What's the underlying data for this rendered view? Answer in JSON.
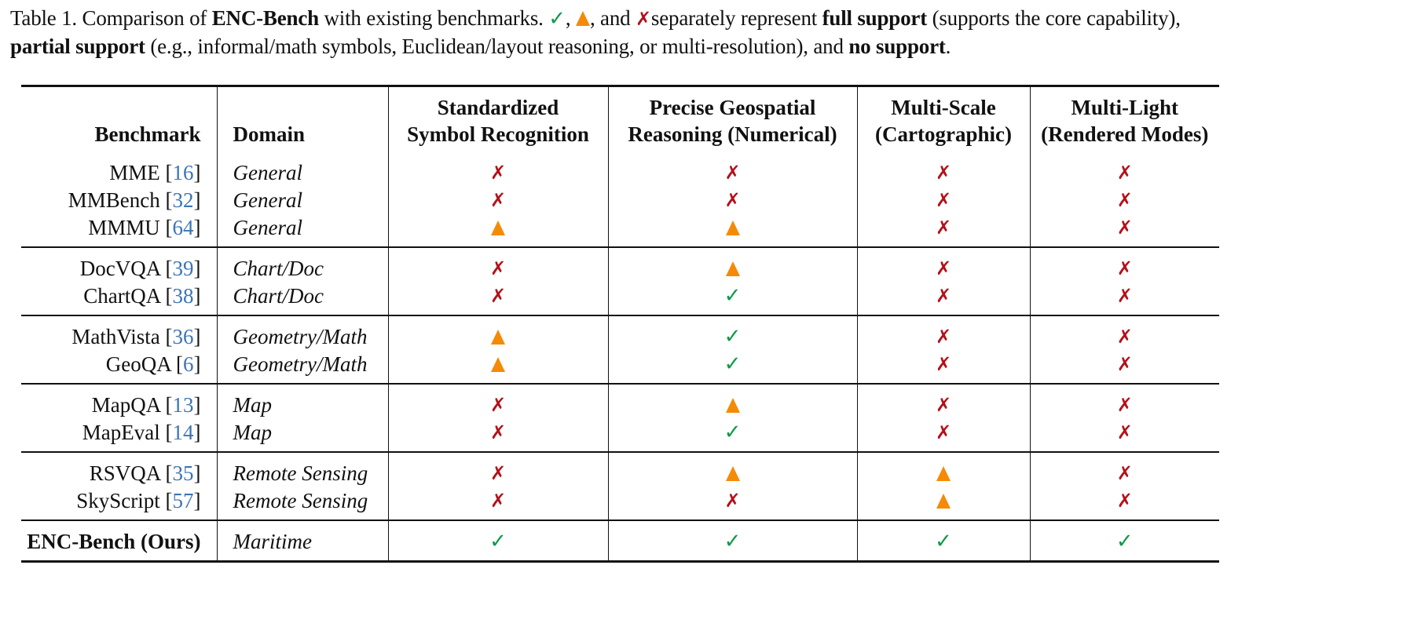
{
  "caption": {
    "prefix": "Table 1. Comparison of ",
    "bold_name": "ENC-Bench",
    "mid1": " with existing benchmarks. ",
    "sep1": ", ",
    "sep2": ", and ",
    "mid2": "separately represent ",
    "full_support_label": "full support",
    "full_support_desc": " (supports the core capability),",
    "partial_support_label": "partial support",
    "partial_support_desc": " (e.g., informal/math symbols, Euclidean/layout reasoning, or multi-resolution), and ",
    "no_support_label": "no support",
    "end": "."
  },
  "legend": {
    "full": {
      "symbol": "✓",
      "color": "#0e9a47",
      "icon": "check-icon"
    },
    "partial": {
      "symbol": "▲",
      "color": "#f58a07",
      "icon": "triangle-icon"
    },
    "none": {
      "symbol": "✗",
      "color": "#b3111a",
      "icon": "cross-icon"
    }
  },
  "table": {
    "headers": {
      "benchmark": "Benchmark",
      "domain": "Domain",
      "c1_line1": "Standardized",
      "c1_line2": "Symbol Recognition",
      "c2_line1": "Precise Geospatial",
      "c2_line2": "Reasoning (Numerical)",
      "c3_line1": "Multi-Scale",
      "c3_line2": "(Cartographic)",
      "c4_line1": "Multi-Light",
      "c4_line2": "(Rendered Modes)"
    },
    "groups": [
      {
        "rows": [
          {
            "name": "MME",
            "ref": "16",
            "domain": "General",
            "values": [
              "none",
              "none",
              "none",
              "none"
            ]
          },
          {
            "name": "MMBench",
            "ref": "32",
            "domain": "General",
            "values": [
              "none",
              "none",
              "none",
              "none"
            ]
          },
          {
            "name": "MMMU",
            "ref": "64",
            "domain": "General",
            "values": [
              "partial",
              "partial",
              "none",
              "none"
            ]
          }
        ]
      },
      {
        "rows": [
          {
            "name": "DocVQA",
            "ref": "39",
            "domain": "Chart/Doc",
            "values": [
              "none",
              "partial",
              "none",
              "none"
            ]
          },
          {
            "name": "ChartQA",
            "ref": "38",
            "domain": "Chart/Doc",
            "values": [
              "none",
              "full",
              "none",
              "none"
            ]
          }
        ]
      },
      {
        "rows": [
          {
            "name": "MathVista",
            "ref": "36",
            "domain": "Geometry/Math",
            "values": [
              "partial",
              "full",
              "none",
              "none"
            ]
          },
          {
            "name": "GeoQA",
            "ref": "6",
            "domain": "Geometry/Math",
            "values": [
              "partial",
              "full",
              "none",
              "none"
            ]
          }
        ]
      },
      {
        "rows": [
          {
            "name": "MapQA",
            "ref": "13",
            "domain": "Map",
            "values": [
              "none",
              "partial",
              "none",
              "none"
            ]
          },
          {
            "name": "MapEval",
            "ref": "14",
            "domain": "Map",
            "values": [
              "none",
              "full",
              "none",
              "none"
            ]
          }
        ]
      },
      {
        "rows": [
          {
            "name": "RSVQA",
            "ref": "35",
            "domain": "Remote Sensing",
            "values": [
              "none",
              "partial",
              "partial",
              "none"
            ]
          },
          {
            "name": "SkyScript",
            "ref": "57",
            "domain": "Remote Sensing",
            "values": [
              "none",
              "none",
              "partial",
              "none"
            ]
          }
        ]
      },
      {
        "rows": [
          {
            "name": "ENC-Bench (Ours)",
            "ref": "",
            "domain": "Maritime",
            "values": [
              "full",
              "full",
              "full",
              "full"
            ],
            "bold": true
          }
        ]
      }
    ]
  },
  "chart_data": {
    "type": "table",
    "title": "Table 1. Comparison of ENC-Bench with existing benchmarks.",
    "columns": [
      "Benchmark",
      "Domain",
      "Standardized Symbol Recognition",
      "Precise Geospatial Reasoning (Numerical)",
      "Multi-Scale (Cartographic)",
      "Multi-Light (Rendered Modes)"
    ],
    "rows": [
      [
        "MME [16]",
        "General",
        "none",
        "none",
        "none",
        "none"
      ],
      [
        "MMBench [32]",
        "General",
        "none",
        "none",
        "none",
        "none"
      ],
      [
        "MMMU [64]",
        "General",
        "partial",
        "partial",
        "none",
        "none"
      ],
      [
        "DocVQA [39]",
        "Chart/Doc",
        "none",
        "partial",
        "none",
        "none"
      ],
      [
        "ChartQA [38]",
        "Chart/Doc",
        "none",
        "full",
        "none",
        "none"
      ],
      [
        "MathVista [36]",
        "Geometry/Math",
        "partial",
        "full",
        "none",
        "none"
      ],
      [
        "GeoQA [6]",
        "Geometry/Math",
        "partial",
        "full",
        "none",
        "none"
      ],
      [
        "MapQA [13]",
        "Map",
        "none",
        "partial",
        "none",
        "none"
      ],
      [
        "MapEval [14]",
        "Map",
        "none",
        "full",
        "none",
        "none"
      ],
      [
        "RSVQA [35]",
        "Remote Sensing",
        "none",
        "partial",
        "partial",
        "none"
      ],
      [
        "SkyScript [57]",
        "Remote Sensing",
        "none",
        "none",
        "partial",
        "none"
      ],
      [
        "ENC-Bench (Ours)",
        "Maritime",
        "full",
        "full",
        "full",
        "full"
      ]
    ]
  }
}
